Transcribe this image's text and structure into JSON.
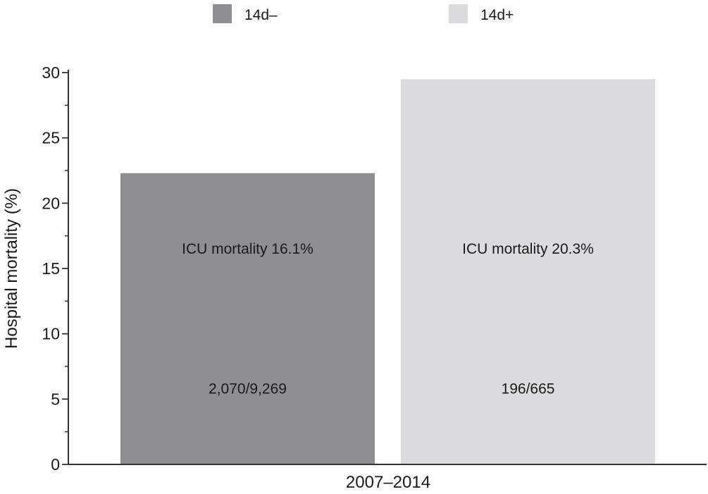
{
  "chart_data": {
    "type": "bar",
    "title": "",
    "xlabel": "",
    "ylabel": "Hospital mortality (%)",
    "ylim": [
      0,
      30
    ],
    "yticks": [
      0,
      5,
      10,
      15,
      20,
      25,
      30
    ],
    "categories": [
      "2007–2014"
    ],
    "legend_position": "top",
    "grid": false,
    "series": [
      {
        "name": "14d–",
        "color": "#8e8f93",
        "values": [
          22.3
        ],
        "annotations": [
          "ICU mortality 16.1%",
          "2,070/9,269"
        ]
      },
      {
        "name": "14d+",
        "color": "#dcdcde",
        "values": [
          29.5
        ],
        "annotations": [
          "ICU mortality 20.3%",
          "196/665"
        ]
      }
    ]
  }
}
